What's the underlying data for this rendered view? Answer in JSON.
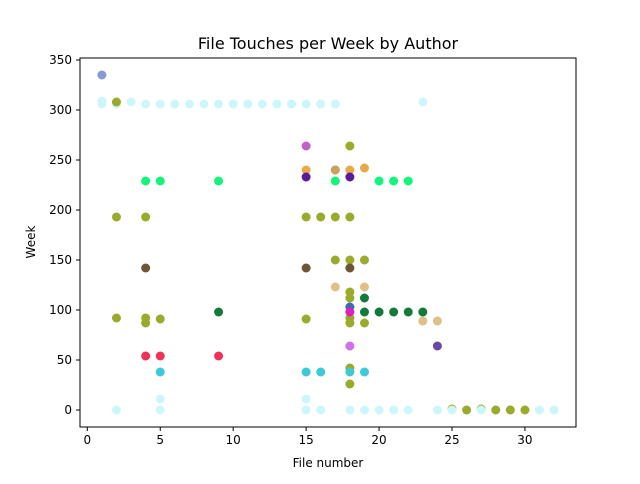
{
  "chart_data": {
    "type": "scatter",
    "title": "File Touches per Week by Author",
    "xlabel": "File number",
    "ylabel": "Week",
    "xlim": [
      -0.5,
      33.5
    ],
    "ylim": [
      -17,
      352
    ],
    "xticks": [
      0,
      5,
      10,
      15,
      20,
      25,
      30
    ],
    "yticks": [
      0,
      50,
      100,
      150,
      200,
      250,
      300,
      350
    ],
    "grid": false,
    "legend": "none",
    "points": [
      {
        "x": 1,
        "y": 335,
        "color": "#8899cc"
      },
      {
        "x": 1,
        "y": 309,
        "color": "#cdf6fb"
      },
      {
        "x": 1,
        "y": 306,
        "color": "#cdf6fb"
      },
      {
        "x": 2,
        "y": 306,
        "color": "#cdf6fb"
      },
      {
        "x": 3,
        "y": 308,
        "color": "#cdf6fb"
      },
      {
        "x": 4,
        "y": 306,
        "color": "#cdf6fb"
      },
      {
        "x": 5,
        "y": 306,
        "color": "#cdf6fb"
      },
      {
        "x": 6,
        "y": 306,
        "color": "#cdf6fb"
      },
      {
        "x": 7,
        "y": 306,
        "color": "#cdf6fb"
      },
      {
        "x": 8,
        "y": 306,
        "color": "#cdf6fb"
      },
      {
        "x": 9,
        "y": 306,
        "color": "#cdf6fb"
      },
      {
        "x": 10,
        "y": 306,
        "color": "#cdf6fb"
      },
      {
        "x": 11,
        "y": 306,
        "color": "#cdf6fb"
      },
      {
        "x": 12,
        "y": 306,
        "color": "#cdf6fb"
      },
      {
        "x": 13,
        "y": 306,
        "color": "#cdf6fb"
      },
      {
        "x": 14,
        "y": 306,
        "color": "#cdf6fb"
      },
      {
        "x": 15,
        "y": 306,
        "color": "#cdf6fb"
      },
      {
        "x": 16,
        "y": 306,
        "color": "#cdf6fb"
      },
      {
        "x": 17,
        "y": 306,
        "color": "#cdf6fb"
      },
      {
        "x": 23,
        "y": 308,
        "color": "#cdf6fb"
      },
      {
        "x": 2,
        "y": 308,
        "color": "#9aab2c"
      },
      {
        "x": 2,
        "y": 193,
        "color": "#9aab2c"
      },
      {
        "x": 4,
        "y": 193,
        "color": "#9aab2c"
      },
      {
        "x": 2,
        "y": 92,
        "color": "#9aab2c"
      },
      {
        "x": 4,
        "y": 92,
        "color": "#9aab2c"
      },
      {
        "x": 4,
        "y": 87,
        "color": "#9aab2c"
      },
      {
        "x": 5,
        "y": 91,
        "color": "#9aab2c"
      },
      {
        "x": 15,
        "y": 193,
        "color": "#9aab2c"
      },
      {
        "x": 16,
        "y": 193,
        "color": "#9aab2c"
      },
      {
        "x": 17,
        "y": 193,
        "color": "#9aab2c"
      },
      {
        "x": 18,
        "y": 193,
        "color": "#9aab2c"
      },
      {
        "x": 15,
        "y": 91,
        "color": "#9aab2c"
      },
      {
        "x": 17,
        "y": 150,
        "color": "#9aab2c"
      },
      {
        "x": 18,
        "y": 150,
        "color": "#9aab2c"
      },
      {
        "x": 19,
        "y": 150,
        "color": "#9aab2c"
      },
      {
        "x": 18,
        "y": 264,
        "color": "#9aab2c"
      },
      {
        "x": 18,
        "y": 118,
        "color": "#9aab2c"
      },
      {
        "x": 18,
        "y": 112,
        "color": "#9aab2c"
      },
      {
        "x": 18,
        "y": 92,
        "color": "#9aab2c"
      },
      {
        "x": 18,
        "y": 87,
        "color": "#9aab2c"
      },
      {
        "x": 19,
        "y": 87,
        "color": "#9aab2c"
      },
      {
        "x": 18,
        "y": 42,
        "color": "#9aab2c"
      },
      {
        "x": 18,
        "y": 26,
        "color": "#9aab2c"
      },
      {
        "x": 25,
        "y": 1,
        "color": "#9aab2c"
      },
      {
        "x": 26,
        "y": 0,
        "color": "#9aab2c"
      },
      {
        "x": 27,
        "y": 1,
        "color": "#9aab2c"
      },
      {
        "x": 28,
        "y": 0,
        "color": "#9aab2c"
      },
      {
        "x": 29,
        "y": 0,
        "color": "#9aab2c"
      },
      {
        "x": 30,
        "y": 0,
        "color": "#9aab2c"
      },
      {
        "x": 4,
        "y": 229,
        "color": "#12f57a"
      },
      {
        "x": 5,
        "y": 229,
        "color": "#12f57a"
      },
      {
        "x": 9,
        "y": 229,
        "color": "#12f57a"
      },
      {
        "x": 17,
        "y": 229,
        "color": "#12f57a"
      },
      {
        "x": 20,
        "y": 229,
        "color": "#12f57a"
      },
      {
        "x": 21,
        "y": 229,
        "color": "#12f57a"
      },
      {
        "x": 22,
        "y": 229,
        "color": "#12f57a"
      },
      {
        "x": 4,
        "y": 142,
        "color": "#6e5535"
      },
      {
        "x": 15,
        "y": 142,
        "color": "#6e5535"
      },
      {
        "x": 18,
        "y": 142,
        "color": "#6e5535"
      },
      {
        "x": 9,
        "y": 98,
        "color": "#127a3b"
      },
      {
        "x": 19,
        "y": 112,
        "color": "#127a3b"
      },
      {
        "x": 19,
        "y": 98,
        "color": "#127a3b"
      },
      {
        "x": 20,
        "y": 98,
        "color": "#127a3b"
      },
      {
        "x": 21,
        "y": 98,
        "color": "#127a3b"
      },
      {
        "x": 22,
        "y": 98,
        "color": "#127a3b"
      },
      {
        "x": 23,
        "y": 98,
        "color": "#127a3b"
      },
      {
        "x": 4,
        "y": 54,
        "color": "#f03258"
      },
      {
        "x": 5,
        "y": 54,
        "color": "#f03258"
      },
      {
        "x": 9,
        "y": 54,
        "color": "#f03258"
      },
      {
        "x": 5,
        "y": 38,
        "color": "#3ec9d6"
      },
      {
        "x": 15,
        "y": 38,
        "color": "#3ec9d6"
      },
      {
        "x": 16,
        "y": 38,
        "color": "#3ec9d6"
      },
      {
        "x": 18,
        "y": 38,
        "color": "#3ec9d6"
      },
      {
        "x": 19,
        "y": 38,
        "color": "#3ec9d6"
      },
      {
        "x": 15,
        "y": 264,
        "color": "#c060c8"
      },
      {
        "x": 15,
        "y": 240,
        "color": "#e8a848"
      },
      {
        "x": 17,
        "y": 240,
        "color": "#e8a848"
      },
      {
        "x": 18,
        "y": 240,
        "color": "#e8a848"
      },
      {
        "x": 19,
        "y": 242,
        "color": "#e8a848"
      },
      {
        "x": 17,
        "y": 240,
        "color": "#c8a060"
      },
      {
        "x": 15,
        "y": 233,
        "color": "#5a1a9a"
      },
      {
        "x": 18,
        "y": 233,
        "color": "#5a1a9a"
      },
      {
        "x": 17,
        "y": 123,
        "color": "#dfc088"
      },
      {
        "x": 19,
        "y": 123,
        "color": "#dfc088"
      },
      {
        "x": 23,
        "y": 89,
        "color": "#dfc088"
      },
      {
        "x": 24,
        "y": 89,
        "color": "#dfc088"
      },
      {
        "x": 18,
        "y": 103,
        "color": "#3a6ea8"
      },
      {
        "x": 18,
        "y": 98,
        "color": "#e020c0"
      },
      {
        "x": 18,
        "y": 64,
        "color": "#d070e8"
      },
      {
        "x": 24,
        "y": 64,
        "color": "#6a4aa0"
      },
      {
        "x": 2,
        "y": 0,
        "color": "#cdf6fb"
      },
      {
        "x": 5,
        "y": 11,
        "color": "#cdf6fb"
      },
      {
        "x": 5,
        "y": 0,
        "color": "#cdf6fb"
      },
      {
        "x": 15,
        "y": 11,
        "color": "#cdf6fb"
      },
      {
        "x": 15,
        "y": 0,
        "color": "#cdf6fb"
      },
      {
        "x": 16,
        "y": 0,
        "color": "#cdf6fb"
      },
      {
        "x": 18,
        "y": 0,
        "color": "#cdf6fb"
      },
      {
        "x": 19,
        "y": 0,
        "color": "#cdf6fb"
      },
      {
        "x": 20,
        "y": 0,
        "color": "#cdf6fb"
      },
      {
        "x": 21,
        "y": 0,
        "color": "#cdf6fb"
      },
      {
        "x": 22,
        "y": 0,
        "color": "#cdf6fb"
      },
      {
        "x": 24,
        "y": 0,
        "color": "#cdf6fb"
      },
      {
        "x": 25,
        "y": 0,
        "color": "#cdf6fb"
      },
      {
        "x": 27,
        "y": 0,
        "color": "#cdf6fb"
      },
      {
        "x": 31,
        "y": 0,
        "color": "#cdf6fb"
      },
      {
        "x": 32,
        "y": 0,
        "color": "#cdf6fb"
      }
    ]
  }
}
